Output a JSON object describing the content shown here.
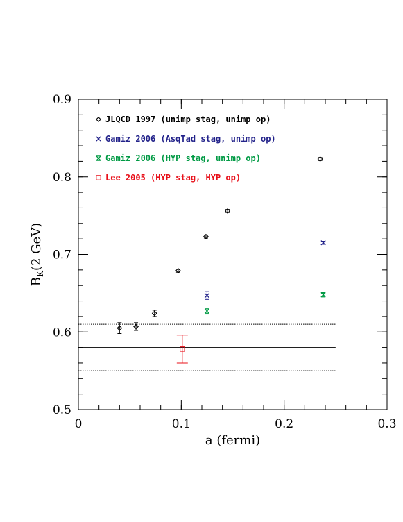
{
  "chart_data": {
    "type": "scatter",
    "xlabel": "a (fermi)",
    "ylabel_main": "B",
    "ylabel_sub": "K",
    "ylabel_rest": "(2 GeV)",
    "xlim": [
      0,
      0.3
    ],
    "ylim": [
      0.5,
      0.9
    ],
    "x_ticks": [
      {
        "value": 0,
        "label": "0"
      },
      {
        "value": 0.1,
        "label": "0.1"
      },
      {
        "value": 0.2,
        "label": "0.2"
      },
      {
        "value": 0.3,
        "label": "0.3"
      }
    ],
    "y_ticks": [
      {
        "value": 0.5,
        "label": "0.5"
      },
      {
        "value": 0.6,
        "label": "0.6"
      },
      {
        "value": 0.7,
        "label": "0.7"
      },
      {
        "value": 0.8,
        "label": "0.8"
      },
      {
        "value": 0.9,
        "label": "0.9"
      }
    ],
    "minor_x_step": 0.02,
    "minor_y_step": 0.02,
    "series": [
      {
        "name": "JLQCD 1997 (unimp stag, unimp op)",
        "color": "#000000",
        "marker": "diamond",
        "points": [
          {
            "x": 0.04,
            "y": 0.605,
            "err": 0.007
          },
          {
            "x": 0.056,
            "y": 0.607,
            "err": 0.005
          },
          {
            "x": 0.074,
            "y": 0.624,
            "err": 0.004
          },
          {
            "x": 0.097,
            "y": 0.679,
            "err": 0.002
          },
          {
            "x": 0.124,
            "y": 0.723,
            "err": 0.002
          },
          {
            "x": 0.145,
            "y": 0.756,
            "err": 0.002
          },
          {
            "x": 0.235,
            "y": 0.823,
            "err": 0.002
          }
        ]
      },
      {
        "name": "Gamiz 2006 (AsqTad stag, unimp op)",
        "color": "#22228a",
        "marker": "cross",
        "points": [
          {
            "x": 0.125,
            "y": 0.647,
            "err": 0.005
          },
          {
            "x": 0.238,
            "y": 0.715,
            "err": 0.002
          }
        ]
      },
      {
        "name": "Gamiz 2006 (HYP stag, unimp op)",
        "color": "#009a44",
        "marker": "cross-bar",
        "points": [
          {
            "x": 0.125,
            "y": 0.627,
            "err": 0.004
          },
          {
            "x": 0.238,
            "y": 0.648,
            "err": 0.002
          }
        ]
      },
      {
        "name": "Lee 2005 (HYP stag, HYP op)",
        "color": "#e8101a",
        "marker": "square",
        "points": [
          {
            "x": 0.101,
            "y": 0.578,
            "err": 0.018
          }
        ]
      }
    ],
    "hlines": [
      {
        "y": 0.61,
        "style": "dotted",
        "x_start": 0,
        "x_end": 0.25
      },
      {
        "y": 0.58,
        "style": "solid",
        "x_start": 0,
        "x_end": 0.25
      },
      {
        "y": 0.55,
        "style": "dotted",
        "x_start": 0,
        "x_end": 0.25
      }
    ],
    "legend_position": "top-left"
  }
}
